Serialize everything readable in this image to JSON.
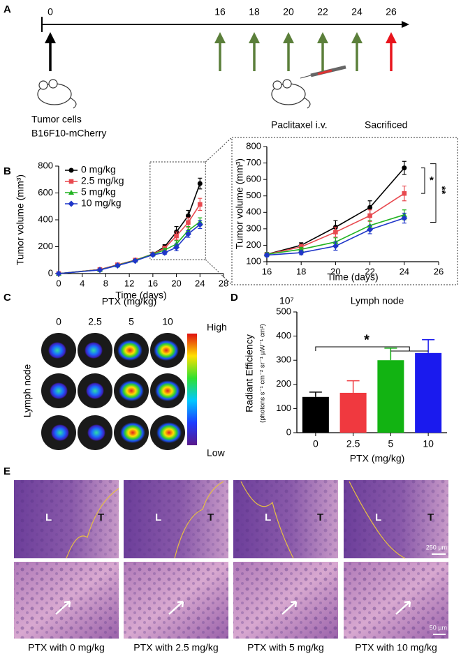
{
  "panel_labels": [
    "A",
    "B",
    "C",
    "D",
    "E"
  ],
  "timeline": {
    "days": [
      0,
      16,
      18,
      20,
      22,
      24,
      26
    ],
    "colors": [
      "#000000",
      "#5b7f3a",
      "#5b7f3a",
      "#5b7f3a",
      "#5b7f3a",
      "#5b7f3a",
      "#e8141c"
    ],
    "labels": [
      "Tumor cells",
      "B16F10-mCherry",
      "Paclitaxel i.v.",
      "Sacrificed"
    ]
  },
  "chart_data": [
    {
      "type": "line",
      "xlabel": "Time (days)",
      "ylabel": "Tumor volume (mm³)",
      "x": [
        0,
        7,
        10,
        13,
        16,
        18,
        20,
        22,
        24
      ],
      "xlim": [
        0,
        28
      ],
      "ylim": [
        0,
        800
      ],
      "xticks": [
        0,
        4,
        8,
        12,
        16,
        20,
        24,
        28
      ],
      "yticks": [
        0,
        200,
        400,
        600,
        800
      ],
      "legend": "upper left",
      "series": [
        {
          "name": "0 mg/kg",
          "color": "#000000",
          "values": [
            0,
            30,
            65,
            100,
            145,
            200,
            310,
            430,
            670
          ],
          "errors": [
            0,
            4,
            6,
            8,
            10,
            15,
            40,
            40,
            40
          ]
        },
        {
          "name": "2.5 mg/kg",
          "color": "#e8494f",
          "values": [
            0,
            30,
            65,
            100,
            145,
            190,
            280,
            380,
            515
          ],
          "errors": [
            0,
            4,
            6,
            8,
            10,
            15,
            30,
            35,
            45
          ]
        },
        {
          "name": "5 mg/kg",
          "color": "#22b322",
          "values": [
            0,
            28,
            62,
            98,
            145,
            175,
            220,
            320,
            385
          ],
          "errors": [
            0,
            4,
            6,
            8,
            10,
            12,
            25,
            30,
            30
          ]
        },
        {
          "name": "10 mg/kg",
          "color": "#1f36c8",
          "values": [
            0,
            27,
            60,
            95,
            140,
            155,
            195,
            295,
            365
          ],
          "errors": [
            0,
            4,
            6,
            8,
            10,
            12,
            25,
            25,
            30
          ]
        }
      ],
      "inset": {
        "xlim": [
          16,
          26
        ],
        "ylim": [
          100,
          800
        ],
        "xticks": [
          16,
          18,
          20,
          22,
          24,
          26
        ],
        "yticks": [
          100,
          200,
          300,
          400,
          500,
          600,
          700,
          800
        ],
        "annotations": [
          "*",
          "**"
        ]
      }
    },
    {
      "type": "bar",
      "title": "Lymph node",
      "multiplier": "10⁷",
      "ylabel": "Radiant Efficiency",
      "ylabel_unit": "(photons s⁻¹ cm⁻² sr⁻¹ µW⁻¹ cm²)",
      "xlabel": "PTX (mg/kg)",
      "categories": [
        "0",
        "2.5",
        "5",
        "10"
      ],
      "values": [
        148,
        165,
        300,
        330
      ],
      "errors": [
        20,
        50,
        50,
        55
      ],
      "colors": [
        "#000000",
        "#f0393f",
        "#12b312",
        "#1a1aee"
      ],
      "ylim": [
        0,
        500
      ],
      "yticks": [
        0,
        100,
        200,
        300,
        400,
        500
      ],
      "annotations": [
        "*"
      ]
    }
  ],
  "imaging": {
    "title": "PTX (mg/kg)",
    "columns": [
      "0",
      "2.5",
      "5",
      "10"
    ],
    "row_label": "Lymph node",
    "scale_high": "High",
    "scale_low": "Low"
  },
  "histology": {
    "region_labels": [
      "L",
      "T"
    ],
    "scale_bars": [
      "250 µm",
      "50 µm"
    ],
    "captions": [
      "PTX with 0 mg/kg",
      "PTX with 2.5 mg/kg",
      "PTX with 5 mg/kg",
      "PTX with 10 mg/kg"
    ]
  }
}
